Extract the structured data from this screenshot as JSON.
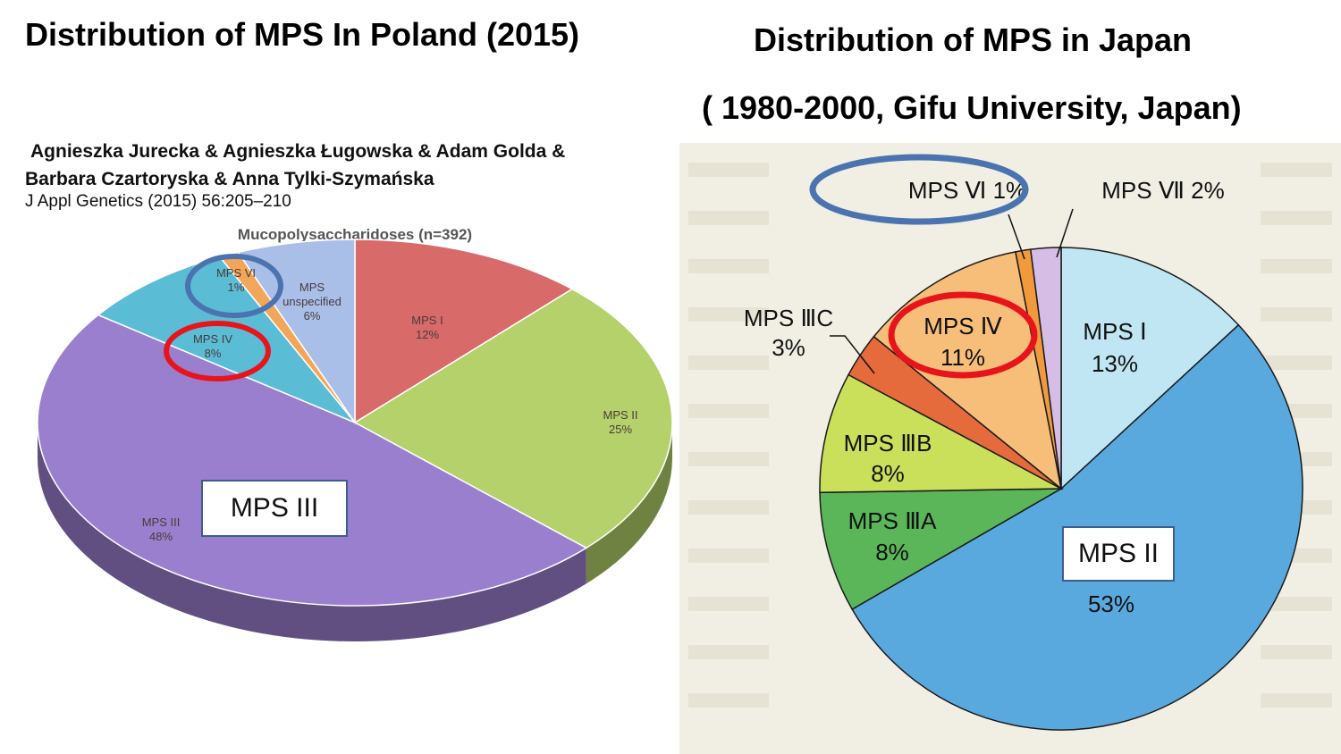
{
  "titles": {
    "left": "Distribution of   MPS In Poland (2015)",
    "right_line1": "Distribution of MPS in Japan",
    "right_line2": "( 1980-2000, Gifu University, Japan)"
  },
  "citation": {
    "authors_line1": "Agnieszka Jurecka & Agnieszka Ługowska & Adam Golda &",
    "authors_line2": "Barbara Czartoryska & Anna Tylki-Szymańska",
    "journal": "J Appl Genetics (2015) 56:205–210"
  },
  "callouts": {
    "left": "MPS III",
    "right": "MPS II"
  },
  "chart_data": [
    {
      "type": "pie",
      "title": "Mucopolysaccharidoses (n=392)",
      "slices": [
        {
          "label": "MPS I",
          "percent_text": "12%",
          "value": 12,
          "color": "#d86a6a"
        },
        {
          "label": "MPS II",
          "percent_text": "25%",
          "value": 25,
          "color": "#b5d16b"
        },
        {
          "label": "MPS III",
          "percent_text": "48%",
          "value": 48,
          "color": "#9b7fcf"
        },
        {
          "label": "MPS IV",
          "percent_text": "8%",
          "value": 8,
          "color": "#5bbcd6"
        },
        {
          "label": "MPS VI",
          "percent_text": "1%",
          "value": 1,
          "color": "#f2a65a"
        },
        {
          "label": "MPS unspecified",
          "percent_text": "6%",
          "value": 6,
          "color": "#a9bfe8"
        }
      ],
      "highlighted": {
        "MPS VI": "#4a73b0",
        "MPS IV": "#e8141b"
      }
    },
    {
      "type": "pie",
      "slices": [
        {
          "label": "MPS Ⅰ",
          "percent_text": "13%",
          "value": 13,
          "color": "#bfe6f2"
        },
        {
          "label": "MPS II",
          "percent_text": "53%",
          "value": 53,
          "color": "#5aa9de"
        },
        {
          "label": "MPS ⅢA",
          "percent_text": "8%",
          "value": 8,
          "color": "#5bb65a"
        },
        {
          "label": "MPS ⅢB",
          "percent_text": "8%",
          "value": 8,
          "color": "#cbe05a"
        },
        {
          "label": "MPS ⅢC",
          "percent_text": "3%",
          "value": 3,
          "color": "#e56a3c"
        },
        {
          "label": "MPS Ⅳ",
          "percent_text": "11%",
          "value": 11,
          "color": "#f7be7a"
        },
        {
          "label": "MPS Ⅵ",
          "percent_text": "1%",
          "value": 1,
          "color": "#f09a3c"
        },
        {
          "label": "MPS Ⅶ",
          "percent_text": "2%",
          "value": 2,
          "color": "#d6bde6"
        }
      ],
      "highlighted": {
        "MPS Ⅵ": "#4a73b0",
        "MPS Ⅳ": "#e8141b"
      }
    }
  ]
}
